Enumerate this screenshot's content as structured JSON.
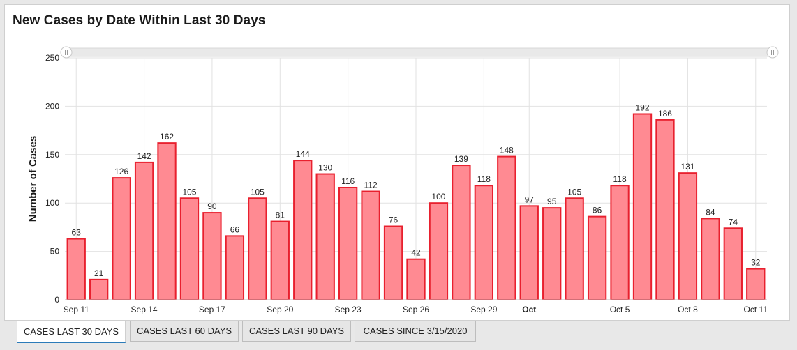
{
  "title": "New Cases by Date Within Last 30 Days",
  "tabs": [
    {
      "label": "CASES LAST 30 DAYS",
      "active": true
    },
    {
      "label": "CASES LAST 60 DAYS",
      "active": false
    },
    {
      "label": "CASES LAST 90 DAYS",
      "active": false
    },
    {
      "label": "CASES SINCE 3/15/2020",
      "active": false
    }
  ],
  "colors": {
    "bar_fill": "#ff8a92",
    "bar_stroke": "#e8202e",
    "grid": "#e2e2e2",
    "active_tab_underline": "#2b7bb9"
  },
  "chart_data": {
    "type": "bar",
    "title": "New Cases by Date Within Last 30 Days",
    "ylabel": "Number of Cases",
    "xlabel": "",
    "ylim": [
      0,
      250
    ],
    "yticks": [
      0,
      50,
      100,
      150,
      200,
      250
    ],
    "grid": true,
    "scrollbar": true,
    "categories": [
      "Sep 11",
      "Sep 12",
      "Sep 13",
      "Sep 14",
      "Sep 15",
      "Sep 16",
      "Sep 17",
      "Sep 18",
      "Sep 19",
      "Sep 20",
      "Sep 21",
      "Sep 22",
      "Sep 23",
      "Sep 24",
      "Sep 25",
      "Sep 26",
      "Sep 27",
      "Sep 28",
      "Sep 29",
      "Sep 30",
      "Oct 1",
      "Oct 2",
      "Oct 3",
      "Oct 4",
      "Oct 5",
      "Oct 6",
      "Oct 7",
      "Oct 8",
      "Oct 9",
      "Oct 10",
      "Oct 11"
    ],
    "values": [
      63,
      21,
      126,
      142,
      162,
      105,
      90,
      66,
      105,
      81,
      144,
      130,
      116,
      112,
      76,
      42,
      100,
      139,
      118,
      148,
      97,
      95,
      105,
      86,
      118,
      192,
      186,
      131,
      84,
      74,
      32
    ],
    "xtick_labels": [
      {
        "label": "Sep 11",
        "index": 0,
        "bold": false
      },
      {
        "label": "Sep 14",
        "index": 3,
        "bold": false
      },
      {
        "label": "Sep 17",
        "index": 6,
        "bold": false
      },
      {
        "label": "Sep 20",
        "index": 9,
        "bold": false
      },
      {
        "label": "Sep 23",
        "index": 12,
        "bold": false
      },
      {
        "label": "Sep 26",
        "index": 15,
        "bold": false
      },
      {
        "label": "Sep 29",
        "index": 18,
        "bold": false
      },
      {
        "label": "Oct",
        "index": 20,
        "bold": true
      },
      {
        "label": "Oct 5",
        "index": 24,
        "bold": false
      },
      {
        "label": "Oct 8",
        "index": 27,
        "bold": false
      },
      {
        "label": "Oct 11",
        "index": 30,
        "bold": false
      }
    ]
  }
}
